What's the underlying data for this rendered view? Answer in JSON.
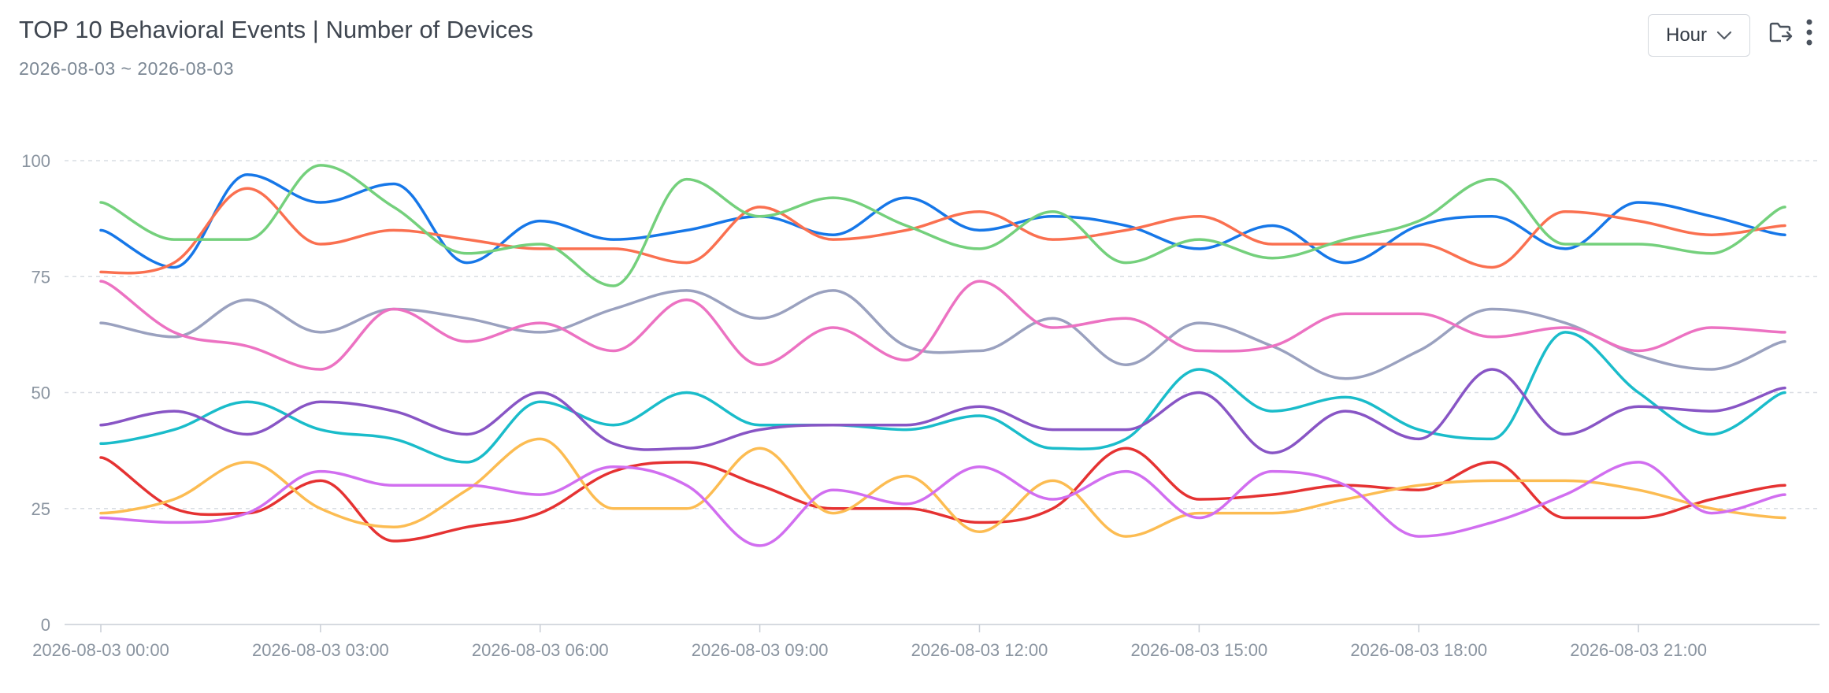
{
  "header": {
    "title": "TOP 10 Behavioral Events | Number of Devices",
    "date_range": "2026-08-03 ~ 2026-08-03"
  },
  "controls": {
    "granularity": "Hour",
    "export_icon": "folder-export-icon",
    "more_icon": "more-vertical-icon"
  },
  "chart_data": {
    "type": "line",
    "smooth": true,
    "title": "TOP 10 Behavioral Events | Number of Devices",
    "xlabel": "",
    "ylabel": "",
    "ylim": [
      0,
      100
    ],
    "yticks": [
      0,
      25,
      50,
      75,
      100
    ],
    "grid": "horizontal-dashed",
    "legend": "none",
    "x": [
      "2026-08-03 00:00",
      "2026-08-03 01:00",
      "2026-08-03 02:00",
      "2026-08-03 03:00",
      "2026-08-03 04:00",
      "2026-08-03 05:00",
      "2026-08-03 06:00",
      "2026-08-03 07:00",
      "2026-08-03 08:00",
      "2026-08-03 09:00",
      "2026-08-03 10:00",
      "2026-08-03 11:00",
      "2026-08-03 12:00",
      "2026-08-03 13:00",
      "2026-08-03 14:00",
      "2026-08-03 15:00",
      "2026-08-03 16:00",
      "2026-08-03 17:00",
      "2026-08-03 18:00",
      "2026-08-03 19:00",
      "2026-08-03 20:00",
      "2026-08-03 21:00",
      "2026-08-03 22:00",
      "2026-08-03 23:00"
    ],
    "xtick_labels": [
      "2026-08-03 00:00",
      "2026-08-03 03:00",
      "2026-08-03 06:00",
      "2026-08-03 09:00",
      "2026-08-03 12:00",
      "2026-08-03 15:00",
      "2026-08-03 18:00",
      "2026-08-03 21:00"
    ],
    "xtick_every": 3,
    "series": [
      {
        "color": "#1677e8",
        "values": [
          85,
          77,
          97,
          91,
          95,
          78,
          87,
          83,
          85,
          88,
          84,
          92,
          85,
          88,
          86,
          81,
          86,
          78,
          86,
          88,
          81,
          91,
          88,
          84
        ]
      },
      {
        "color": "#fa7050",
        "values": [
          76,
          78,
          94,
          82,
          85,
          83,
          81,
          81,
          78,
          90,
          83,
          85,
          89,
          83,
          85,
          88,
          82,
          82,
          82,
          77,
          89,
          87,
          84,
          86
        ]
      },
      {
        "color": "#74d07c",
        "values": [
          91,
          83,
          83,
          99,
          90,
          80,
          82,
          73,
          96,
          88,
          92,
          86,
          81,
          89,
          78,
          83,
          79,
          83,
          87,
          96,
          82,
          82,
          80,
          90
        ]
      },
      {
        "color": "#9aa1bf",
        "values": [
          65,
          62,
          70,
          63,
          68,
          66,
          63,
          68,
          72,
          66,
          72,
          60,
          59,
          66,
          56,
          65,
          60,
          53,
          59,
          68,
          65,
          58,
          55,
          61
        ]
      },
      {
        "color": "#ec72c2",
        "values": [
          74,
          63,
          60,
          55,
          68,
          61,
          65,
          59,
          70,
          56,
          64,
          57,
          74,
          64,
          66,
          59,
          60,
          67,
          67,
          62,
          64,
          59,
          64,
          63
        ]
      },
      {
        "color": "#1abcca",
        "values": [
          39,
          42,
          48,
          42,
          40,
          35,
          48,
          43,
          50,
          43,
          43,
          42,
          45,
          38,
          40,
          55,
          46,
          49,
          42,
          40,
          63,
          50,
          41,
          50
        ]
      },
      {
        "color": "#8855c5",
        "values": [
          43,
          46,
          41,
          48,
          46,
          41,
          50,
          39,
          38,
          42,
          43,
          43,
          47,
          42,
          42,
          50,
          37,
          46,
          40,
          55,
          41,
          47,
          46,
          51
        ]
      },
      {
        "color": "#e53232",
        "values": [
          36,
          25,
          24,
          31,
          18,
          21,
          24,
          33,
          35,
          30,
          25,
          25,
          22,
          25,
          38,
          27,
          28,
          30,
          29,
          35,
          23,
          23,
          27,
          30
        ]
      },
      {
        "color": "#fcbc52",
        "values": [
          24,
          27,
          35,
          25,
          21,
          29,
          40,
          25,
          25,
          38,
          24,
          32,
          20,
          31,
          19,
          24,
          24,
          27,
          30,
          31,
          31,
          29,
          25,
          23
        ]
      },
      {
        "color": "#d16ef0",
        "values": [
          23,
          22,
          24,
          33,
          30,
          30,
          28,
          34,
          30,
          17,
          29,
          26,
          34,
          27,
          33,
          23,
          33,
          30,
          19,
          22,
          28,
          35,
          24,
          28
        ]
      }
    ]
  }
}
